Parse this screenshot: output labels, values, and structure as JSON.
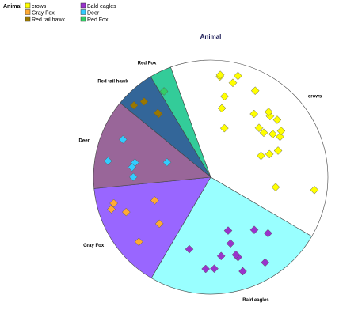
{
  "chart_data": {
    "type": "pie",
    "title": "Animal",
    "legend_title": "Animal",
    "legend_position": "top-left",
    "categories": [
      "crows",
      "Bald eagles",
      "Gray Fox",
      "Deer",
      "Red tail hawk",
      "Red Fox"
    ],
    "slices": [
      {
        "name": "crows",
        "value": 39,
        "color": "#ffffff"
      },
      {
        "name": "Bald eagles",
        "value": 25,
        "color": "#99ffff"
      },
      {
        "name": "Gray Fox",
        "value": 15,
        "color": "#9966ff"
      },
      {
        "name": "Deer",
        "value": 12.5,
        "color": "#996699"
      },
      {
        "name": "Red tail hawk",
        "value": 5.5,
        "color": "#336699"
      },
      {
        "name": "Red Fox",
        "value": 3,
        "color": "#33cc99"
      }
    ],
    "legend": [
      {
        "name": "crows",
        "marker_color": "#ffff00"
      },
      {
        "name": "Bald eagles",
        "marker_color": "#9933cc"
      },
      {
        "name": "Gray Fox",
        "marker_color": "#ffaa33"
      },
      {
        "name": "Deer",
        "marker_color": "#33ccff"
      },
      {
        "name": "Red tail hawk",
        "marker_color": "#997700"
      },
      {
        "name": "Red Fox",
        "marker_color": "#33cc66"
      }
    ],
    "marker_counts": {
      "crows": 22,
      "Bald eagles": 12,
      "Gray Fox": 6,
      "Deer": 6,
      "Red tail hawk": 4,
      "Red Fox": 1
    }
  }
}
